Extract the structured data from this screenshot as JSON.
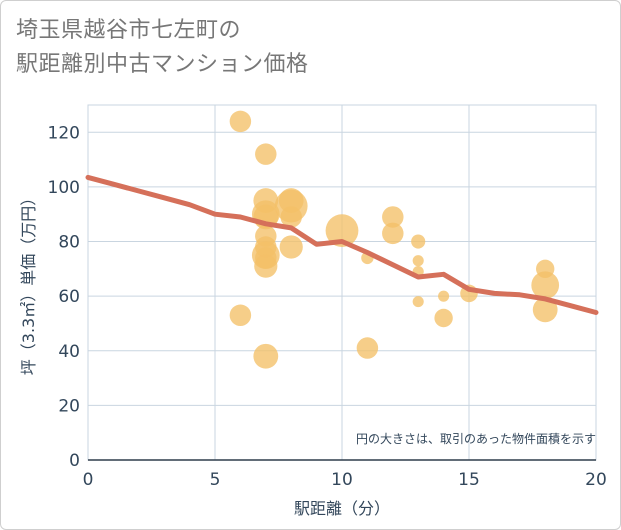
{
  "title_line1": "埼玉県越谷市七左町の",
  "title_line2": "駅距離別中古マンション価格",
  "chart_data": {
    "type": "scatter",
    "xlabel": "駅距離（分）",
    "ylabel": "坪（3.3㎡）単価（万円）",
    "xlim": [
      0,
      20
    ],
    "ylim": [
      0,
      130
    ],
    "xticks": [
      0,
      5,
      10,
      15,
      20
    ],
    "yticks": [
      0,
      20,
      40,
      60,
      80,
      100,
      120
    ],
    "grid": true,
    "note": "円の大きさは、取引のあった物件面積を示す",
    "colors": {
      "bubble": "#f3c068",
      "line": "#d5705a",
      "grid": "#c9d5e0"
    },
    "points": [
      {
        "x": 6,
        "y": 124,
        "size": 3
      },
      {
        "x": 6,
        "y": 53,
        "size": 3
      },
      {
        "x": 7,
        "y": 112,
        "size": 3
      },
      {
        "x": 7,
        "y": 95,
        "size": 4
      },
      {
        "x": 7,
        "y": 90,
        "size": 5
      },
      {
        "x": 7,
        "y": 89,
        "size": 4
      },
      {
        "x": 7,
        "y": 82,
        "size": 3
      },
      {
        "x": 7,
        "y": 78,
        "size": 3
      },
      {
        "x": 7,
        "y": 75,
        "size": 5
      },
      {
        "x": 7,
        "y": 74,
        "size": 3
      },
      {
        "x": 7,
        "y": 71,
        "size": 3.5
      },
      {
        "x": 7,
        "y": 38,
        "size": 4
      },
      {
        "x": 8,
        "y": 95,
        "size": 4
      },
      {
        "x": 8,
        "y": 93,
        "size": 7
      },
      {
        "x": 8,
        "y": 89,
        "size": 3
      },
      {
        "x": 8,
        "y": 78,
        "size": 3.5
      },
      {
        "x": 10,
        "y": 84,
        "size": 7
      },
      {
        "x": 11,
        "y": 74,
        "size": 1
      },
      {
        "x": 11,
        "y": 41,
        "size": 3
      },
      {
        "x": 12,
        "y": 89,
        "size": 3
      },
      {
        "x": 12,
        "y": 83,
        "size": 3
      },
      {
        "x": 13,
        "y": 80,
        "size": 1.3
      },
      {
        "x": 13,
        "y": 73,
        "size": 0.8
      },
      {
        "x": 13,
        "y": 69,
        "size": 0.8
      },
      {
        "x": 13,
        "y": 58,
        "size": 0.8
      },
      {
        "x": 14,
        "y": 60,
        "size": 0.8
      },
      {
        "x": 14,
        "y": 52,
        "size": 2.2
      },
      {
        "x": 15,
        "y": 61,
        "size": 2
      },
      {
        "x": 18,
        "y": 70,
        "size": 2.2
      },
      {
        "x": 18,
        "y": 64,
        "size": 5
      },
      {
        "x": 18,
        "y": 55,
        "size": 4
      }
    ],
    "trend": {
      "x": [
        0,
        1,
        2,
        3,
        4,
        5,
        6,
        7,
        8,
        9,
        10,
        11,
        12,
        13,
        14,
        15,
        16,
        17,
        18,
        19,
        20
      ],
      "y": [
        103.5,
        101,
        98.5,
        96,
        93.5,
        90,
        89,
        86.5,
        85,
        79,
        80,
        76,
        71.5,
        67,
        68,
        62.5,
        61,
        60.5,
        59,
        56.5,
        54
      ]
    }
  }
}
